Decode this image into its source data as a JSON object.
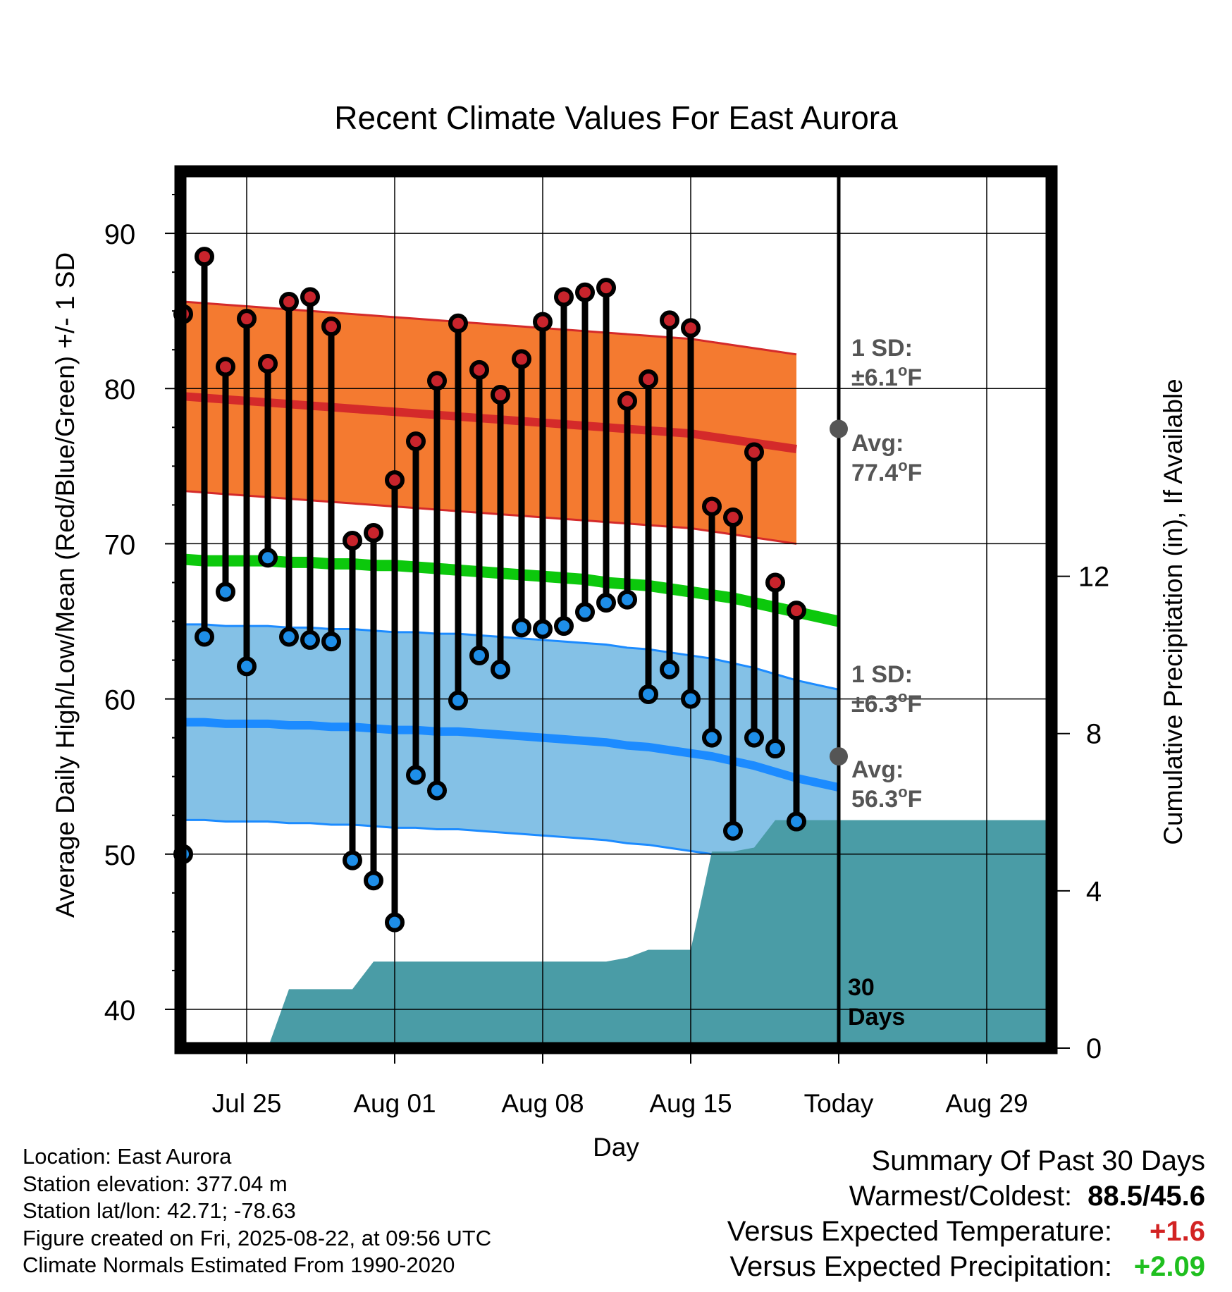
{
  "chart_data": {
    "type": "line",
    "title": "Recent Climate Values For East Aurora",
    "xlabel": "Day",
    "ylabel": "Average Daily High/Low/Mean (Red/Blue/Green) +/- 1 SD",
    "y2label": "Cumulative Precipitation (in), If Available",
    "ylim": [
      37.5,
      94
    ],
    "y2lim": [
      0,
      22.3
    ],
    "yticks": [
      40,
      50,
      60,
      70,
      80,
      90
    ],
    "y2ticks": [
      0,
      4,
      8,
      12
    ],
    "xticks": [
      "Jul 25",
      "Aug 01",
      "Aug 08",
      "Aug 15",
      "Today",
      "Aug 29"
    ],
    "x_dates": [
      "Jul 22",
      "Jul 23",
      "Jul 24",
      "Jul 25",
      "Jul 26",
      "Jul 27",
      "Jul 28",
      "Jul 29",
      "Jul 30",
      "Jul 31",
      "Aug 01",
      "Aug 02",
      "Aug 03",
      "Aug 04",
      "Aug 05",
      "Aug 06",
      "Aug 07",
      "Aug 08",
      "Aug 09",
      "Aug 10",
      "Aug 11",
      "Aug 12",
      "Aug 13",
      "Aug 14",
      "Aug 15",
      "Aug 16",
      "Aug 17",
      "Aug 18",
      "Aug 19",
      "Aug 20",
      "Aug 21",
      "Aug 22",
      "Aug 23",
      "Aug 24",
      "Aug 25",
      "Aug 26",
      "Aug 27",
      "Aug 28",
      "Aug 29",
      "Aug 30",
      "Aug 31",
      "Sep 01"
    ],
    "daily_high": [
      84.8,
      88.5,
      81.4,
      84.5,
      81.6,
      85.6,
      85.9,
      84.0,
      70.2,
      70.7,
      74.1,
      76.6,
      80.5,
      84.2,
      81.2,
      79.6,
      81.9,
      84.3,
      85.9,
      86.2,
      86.5,
      79.2,
      80.6,
      84.4,
      83.9,
      72.4,
      71.7,
      75.9,
      67.5,
      65.7
    ],
    "daily_low": [
      50.0,
      64.0,
      66.9,
      62.1,
      69.1,
      64.0,
      63.8,
      63.7,
      49.6,
      48.3,
      45.6,
      55.1,
      54.1,
      59.9,
      62.8,
      61.9,
      64.6,
      64.5,
      64.7,
      65.6,
      66.2,
      66.4,
      60.3,
      61.9,
      60.0,
      57.5,
      51.5,
      57.5,
      56.8,
      52.1
    ],
    "normal_high": [
      79.5,
      79.4,
      79.3,
      79.2,
      79.1,
      79.0,
      78.9,
      78.8,
      78.7,
      78.6,
      78.5,
      78.4,
      78.3,
      78.2,
      78.1,
      78.0,
      77.9,
      77.8,
      77.7,
      77.6,
      77.5,
      77.4,
      77.3,
      77.2,
      77.1,
      76.9,
      76.7,
      76.5,
      76.3,
      76.1
    ],
    "high_sd": 6.1,
    "normal_low": [
      58.5,
      58.5,
      58.4,
      58.4,
      58.4,
      58.3,
      58.3,
      58.2,
      58.2,
      58.1,
      58.0,
      58.0,
      57.9,
      57.9,
      57.8,
      57.7,
      57.6,
      57.5,
      57.4,
      57.3,
      57.2,
      57.0,
      56.9,
      56.7,
      56.5,
      56.3,
      56.0,
      55.7,
      55.3,
      54.9,
      54.6,
      54.3
    ],
    "low_sd": 6.3,
    "normal_mean": [
      69.0,
      68.9,
      68.9,
      68.9,
      68.9,
      68.8,
      68.8,
      68.7,
      68.7,
      68.6,
      68.6,
      68.5,
      68.4,
      68.3,
      68.2,
      68.1,
      68.0,
      67.9,
      67.8,
      67.7,
      67.5,
      67.4,
      67.3,
      67.1,
      66.9,
      66.7,
      66.5,
      66.2,
      65.9,
      65.6,
      65.3,
      65.0
    ],
    "cumulative_precip": [
      0,
      0,
      0,
      0,
      0,
      1.5,
      1.5,
      1.5,
      1.5,
      2.2,
      2.2,
      2.2,
      2.2,
      2.2,
      2.2,
      2.2,
      2.2,
      2.2,
      2.2,
      2.2,
      2.2,
      2.3,
      2.5,
      2.5,
      2.5,
      5.0,
      5.0,
      5.1,
      5.8,
      5.8,
      5.8,
      5.8,
      5.8,
      5.8,
      5.8,
      5.8,
      5.8,
      5.8,
      5.8,
      5.8,
      5.8
    ],
    "annotations": {
      "high_sd_label": [
        "1 SD:",
        "±6.1",
        "o",
        "F"
      ],
      "high_avg_label": [
        "Avg:",
        "77.4",
        "o",
        "F"
      ],
      "low_sd_label": [
        "1 SD:",
        "±6.3",
        "o",
        "F"
      ],
      "low_avg_label": [
        "Avg:",
        "56.3",
        "o",
        "F"
      ],
      "days_label": [
        "30",
        "Days"
      ]
    },
    "today_high_avg": 77.4,
    "today_low_avg": 56.3,
    "colors": {
      "high_band": "#f47a30",
      "high_line": "#d42a2a",
      "low_band": "#84c1e6",
      "low_line": "#1c8bff",
      "mean_line": "#0cc80c",
      "precip": "#4a9ca6",
      "annotation": "#555555"
    },
    "grid": true
  },
  "footer": {
    "location": "Location: East Aurora",
    "elevation": "Station elevation: 377.04 m",
    "latlon": "Station lat/lon: 42.71; -78.63",
    "created": "Figure created on Fri, 2025-08-22, at 09:56 UTC",
    "normals": "Climate Normals Estimated From 1990-2020"
  },
  "summary": {
    "title": "Summary Of Past 30 Days",
    "warmest_coldest_label": "Warmest/Coldest:",
    "warmest_coldest_value": "88.5/45.6",
    "temp_label": "Versus Expected Temperature:",
    "temp_value": "+1.6",
    "precip_label": "Versus Expected Precipitation:",
    "precip_value": "+2.09"
  }
}
